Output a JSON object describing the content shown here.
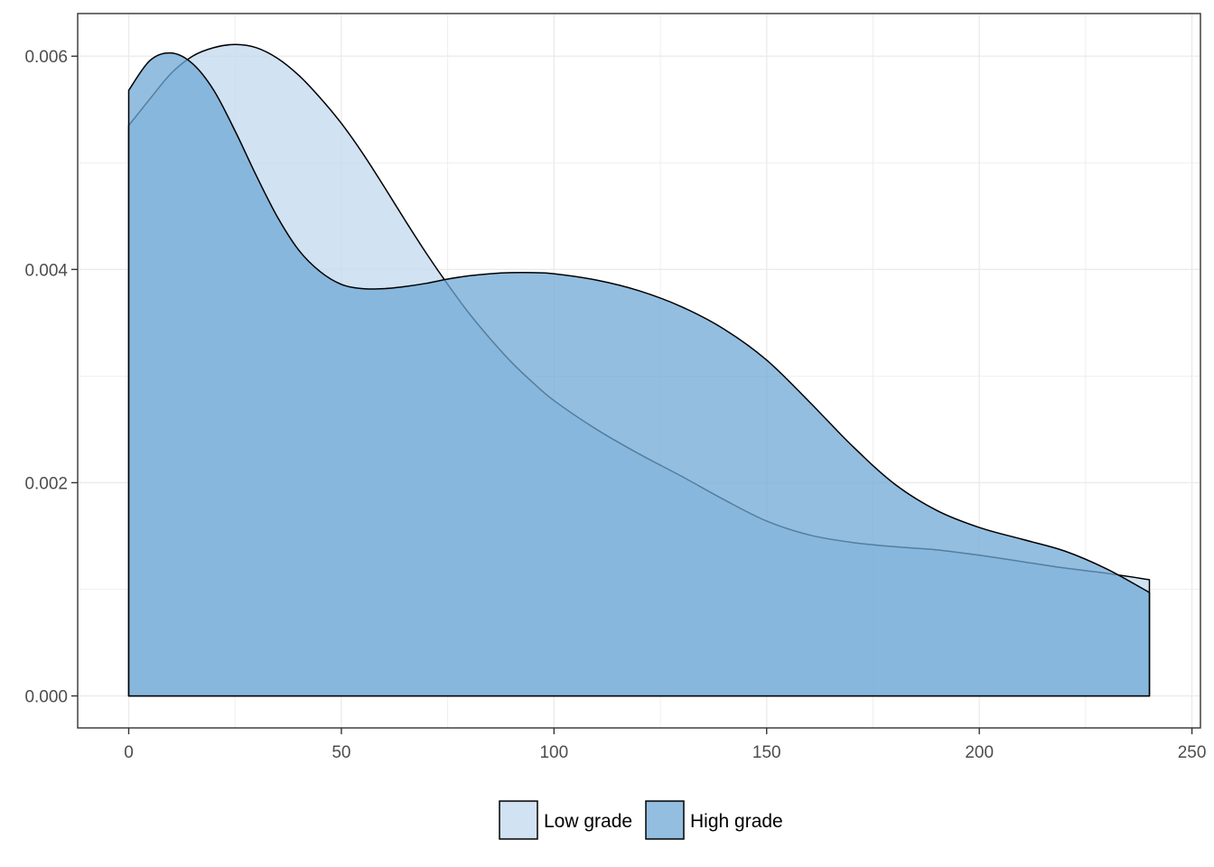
{
  "chart_data": {
    "type": "area",
    "title": "",
    "xlabel": "",
    "ylabel": "",
    "xlim": [
      -12,
      252
    ],
    "ylim": [
      -0.0003,
      0.0064
    ],
    "x_ticks": [
      0,
      50,
      100,
      150,
      200,
      250
    ],
    "x_tick_labels": [
      "0",
      "50",
      "100",
      "150",
      "200",
      "250"
    ],
    "y_ticks": [
      0,
      0.002,
      0.004,
      0.006
    ],
    "y_tick_labels": [
      "0.000",
      "0.002",
      "0.004",
      "0.006"
    ],
    "grid": true,
    "legend_position": "bottom",
    "series": [
      {
        "name": "Low grade",
        "color": "#c6dbef",
        "x": [
          0,
          5,
          10,
          15,
          20,
          25,
          30,
          35,
          40,
          45,
          50,
          55,
          60,
          65,
          70,
          75,
          80,
          85,
          90,
          95,
          100,
          110,
          120,
          130,
          140,
          150,
          160,
          170,
          180,
          190,
          200,
          210,
          220,
          230,
          240
        ],
        "values": [
          0.00535,
          0.0056,
          0.00584,
          0.006,
          0.00608,
          0.00611,
          0.00608,
          0.00598,
          0.00582,
          0.00561,
          0.00537,
          0.00509,
          0.00478,
          0.00446,
          0.00415,
          0.00386,
          0.00359,
          0.00335,
          0.00313,
          0.00294,
          0.00277,
          0.0025,
          0.00227,
          0.00206,
          0.00184,
          0.00164,
          0.00151,
          0.00144,
          0.0014,
          0.00137,
          0.00132,
          0.00126,
          0.0012,
          0.00115,
          0.00109
        ]
      },
      {
        "name": "High grade",
        "color": "#6fa8d6",
        "x": [
          0,
          5,
          10,
          15,
          20,
          25,
          30,
          35,
          40,
          45,
          50,
          55,
          60,
          65,
          70,
          75,
          80,
          85,
          90,
          95,
          100,
          110,
          120,
          130,
          140,
          150,
          160,
          170,
          180,
          190,
          200,
          210,
          220,
          230,
          240
        ],
        "values": [
          0.00568,
          0.00596,
          0.00603,
          0.00593,
          0.00568,
          0.0053,
          0.00488,
          0.00449,
          0.00418,
          0.00398,
          0.00386,
          0.00382,
          0.00382,
          0.00384,
          0.00387,
          0.00391,
          0.00394,
          0.00396,
          0.00397,
          0.00397,
          0.00396,
          0.0039,
          0.0038,
          0.00365,
          0.00344,
          0.00315,
          0.00276,
          0.00235,
          0.00199,
          0.00174,
          0.00158,
          0.00147,
          0.00136,
          0.00119,
          0.00097
        ]
      }
    ]
  }
}
